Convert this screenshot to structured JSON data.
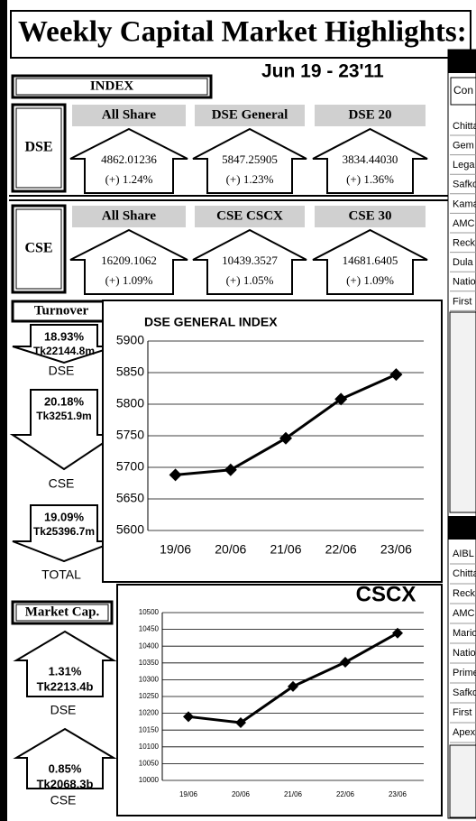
{
  "header": {
    "title": "Weekly Capital Market Highlights:",
    "date": "Jun 19 - 23'11"
  },
  "index": {
    "title": "INDEX",
    "markets": [
      {
        "name": "DSE",
        "indices": [
          {
            "name": "All Share",
            "value": "4862.01236",
            "change": "(+) 1.24%"
          },
          {
            "name": "DSE General",
            "value": "5847.25905",
            "change": "(+) 1.23%"
          },
          {
            "name": "DSE 20",
            "value": "3834.44030",
            "change": "(+) 1.36%"
          }
        ]
      },
      {
        "name": "CSE",
        "indices": [
          {
            "name": "All Share",
            "value": "16209.1062",
            "change": "(+) 1.09%"
          },
          {
            "name": "CSE CSCX",
            "value": "10439.3527",
            "change": "(+) 1.05%"
          },
          {
            "name": "CSE 30",
            "value": "14681.6405",
            "change": "(+) 1.09%"
          }
        ]
      }
    ]
  },
  "turnover": {
    "title": "Turnover",
    "items": [
      {
        "change": "18.93%",
        "amount": "Tk22144.8m",
        "market": "DSE"
      },
      {
        "change": "20.18%",
        "amount": "Tk3251.9m",
        "market": "CSE"
      },
      {
        "change": "19.09%",
        "amount": "Tk25396.7m",
        "market": "TOTAL"
      }
    ]
  },
  "market_cap": {
    "title": "Market Cap.",
    "items": [
      {
        "change": "1.31%",
        "amount": "Tk2213.4b",
        "market": "DSE"
      },
      {
        "change": "0.85%",
        "amount": "Tk2068.3b",
        "market": "CSE"
      }
    ]
  },
  "side": {
    "header": "Con",
    "list1": [
      "Chitta",
      "Gem",
      "Lega",
      "Safko",
      "Kama",
      "AMC",
      "Reck",
      "Dula",
      "Natio",
      "First"
    ],
    "list2": [
      "AIBL",
      "Chitta",
      "Reck",
      "AMC",
      "Mario",
      "Natio",
      "Prime",
      "Safko",
      "First",
      "Apex"
    ]
  },
  "chart_data": [
    {
      "type": "line",
      "title": "DSE GENERAL INDEX",
      "categories": [
        "19/06",
        "20/06",
        "21/06",
        "22/06",
        "23/06"
      ],
      "values": [
        5688,
        5696,
        5746,
        5808,
        5847
      ],
      "color": "#000000",
      "ylim": [
        5600,
        5900
      ],
      "yticks": [
        5600,
        5650,
        5700,
        5750,
        5800,
        5850,
        5900
      ],
      "grid": true
    },
    {
      "type": "line",
      "title": "CSCX",
      "categories": [
        "19/06",
        "20/06",
        "21/06",
        "22/06",
        "23/06"
      ],
      "values": [
        10190,
        10172,
        10280,
        10352,
        10439
      ],
      "color": "#000000",
      "ylim": [
        10000,
        10500
      ],
      "yticks": [
        10000,
        10050,
        10100,
        10150,
        10200,
        10250,
        10300,
        10350,
        10400,
        10450,
        10500
      ],
      "grid": true
    }
  ]
}
